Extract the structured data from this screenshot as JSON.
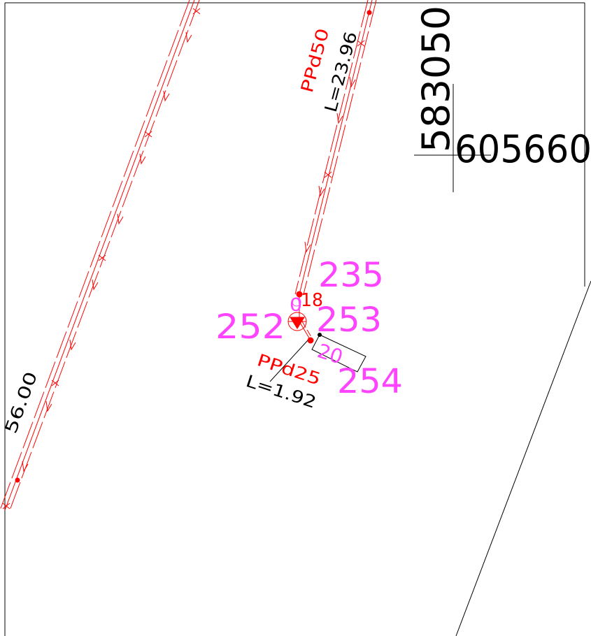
{
  "colors": {
    "pipe": "#ff0000",
    "label_magenta": "#ff44ff",
    "ink": "#000000",
    "background": "#ffffff"
  },
  "coordinates": {
    "northing": "583050",
    "easting": "605660"
  },
  "pipes": {
    "main": {
      "type": "PPd50",
      "length": "L=23.96"
    },
    "branch": {
      "type": "PPd25",
      "length": "L=1.92"
    },
    "left": {
      "length_partial": "56.00"
    }
  },
  "points": {
    "p235": "235",
    "p253": "253",
    "p252": "252",
    "p254": "254"
  },
  "fragments": {
    "red_18": "18",
    "pink_20": "20",
    "pink_0": "0"
  }
}
